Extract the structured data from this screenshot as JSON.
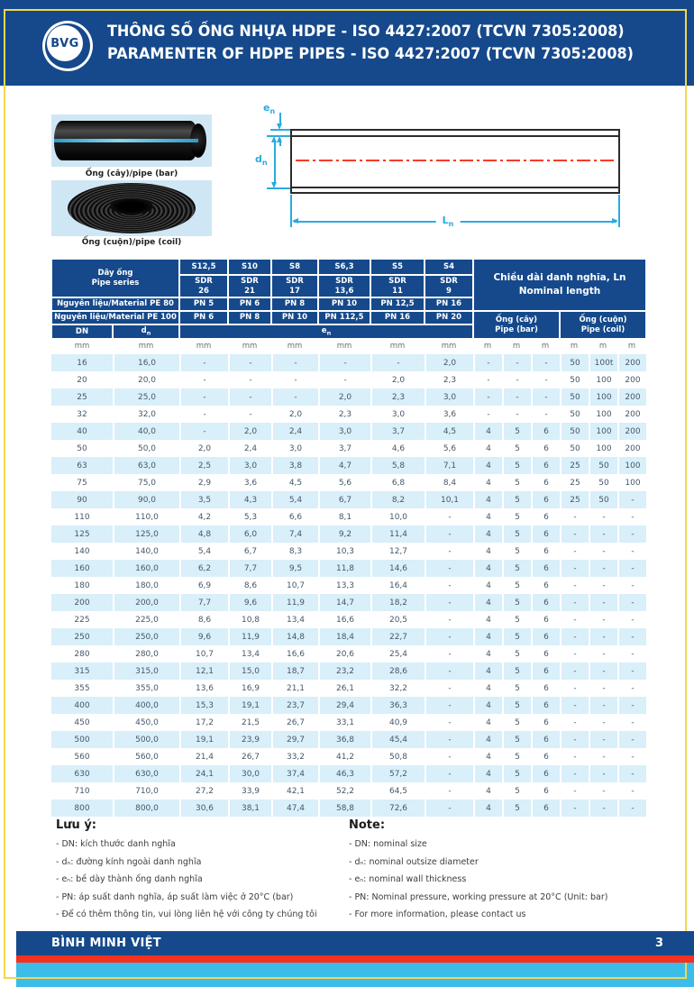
{
  "header": {
    "logo_text": "BVG",
    "title_line1": "THÔNG SỐ ỐNG NHỰA HDPE - ISO 4427:2007 (TCVN 7305:2008)",
    "title_line2": "PARAMENTER OF HDPE PIPES - ISO 4427:2007 (TCVN 7305:2008)"
  },
  "media": {
    "bar_label": "Ống (cây)/pipe (bar)",
    "coil_label": "Ống (cuộn)/pipe (coil)"
  },
  "diagram": {
    "en_main": "e",
    "dn_main": "d",
    "ln_main": "L",
    "sub_n": "n"
  },
  "table": {
    "series_title_vi": "Dãy ống",
    "series_title_en": "Pipe series",
    "s_labels": [
      "S12,5",
      "S10",
      "S8",
      "S6,3",
      "S5",
      "S4"
    ],
    "sdr_word": "SDR",
    "sdr_values": [
      "26",
      "21",
      "17",
      "13,6",
      "11",
      "9"
    ],
    "pe80_label": "Nguyên liệu/Material PE 80",
    "pe80_pn": [
      "PN 5",
      "PN 6",
      "PN 8",
      "PN 10",
      "PN 12,5",
      "PN 16"
    ],
    "pe100_label": "Nguyên liệu/Material PE 100",
    "pe100_pn": [
      "PN 6",
      "PN 8",
      "PN 10",
      "PN 112,5",
      "PN 16",
      "PN 20"
    ],
    "length_title_vi": "Chiều dài danh nghĩa, Ln",
    "length_title_en": "Nominal length",
    "bar_col_vi": "Ống (cây)",
    "bar_col_en": "Pipe (bar)",
    "coil_col_vi": "Ống (cuộn)",
    "coil_col_en": "Pipe (coil)",
    "dn_label": "DN",
    "dn_main": "d",
    "en_main": "e",
    "sub_n": "n",
    "units": [
      "mm",
      "mm",
      "mm",
      "mm",
      "mm",
      "mm",
      "mm",
      "mm",
      "m",
      "m",
      "m",
      "m",
      "m",
      "m"
    ],
    "rows": [
      [
        "16",
        "16,0",
        "-",
        "-",
        "-",
        "-",
        "-",
        "2,0",
        "-",
        "-",
        "-",
        "50",
        "100t",
        "200"
      ],
      [
        "20",
        "20,0",
        "-",
        "-",
        "-",
        "-",
        "2,0",
        "2,3",
        "-",
        "-",
        "-",
        "50",
        "100",
        "200"
      ],
      [
        "25",
        "25,0",
        "-",
        "-",
        "-",
        "2,0",
        "2,3",
        "3,0",
        "-",
        "-",
        "-",
        "50",
        "100",
        "200"
      ],
      [
        "32",
        "32,0",
        "-",
        "-",
        "2,0",
        "2,3",
        "3,0",
        "3,6",
        "-",
        "-",
        "-",
        "50",
        "100",
        "200"
      ],
      [
        "40",
        "40,0",
        "-",
        "2,0",
        "2,4",
        "3,0",
        "3,7",
        "4,5",
        "4",
        "5",
        "6",
        "50",
        "100",
        "200"
      ],
      [
        "50",
        "50,0",
        "2,0",
        "2,4",
        "3,0",
        "3,7",
        "4,6",
        "5,6",
        "4",
        "5",
        "6",
        "50",
        "100",
        "200"
      ],
      [
        "63",
        "63,0",
        "2,5",
        "3,0",
        "3,8",
        "4,7",
        "5,8",
        "7,1",
        "4",
        "5",
        "6",
        "25",
        "50",
        "100"
      ],
      [
        "75",
        "75,0",
        "2,9",
        "3,6",
        "4,5",
        "5,6",
        "6,8",
        "8,4",
        "4",
        "5",
        "6",
        "25",
        "50",
        "100"
      ],
      [
        "90",
        "90,0",
        "3,5",
        "4,3",
        "5,4",
        "6,7",
        "8,2",
        "10,1",
        "4",
        "5",
        "6",
        "25",
        "50",
        "-"
      ],
      [
        "110",
        "110,0",
        "4,2",
        "5,3",
        "6,6",
        "8,1",
        "10,0",
        "-",
        "4",
        "5",
        "6",
        "-",
        "-",
        "-"
      ],
      [
        "125",
        "125,0",
        "4,8",
        "6,0",
        "7,4",
        "9,2",
        "11,4",
        "-",
        "4",
        "5",
        "6",
        "-",
        "-",
        "-"
      ],
      [
        "140",
        "140,0",
        "5,4",
        "6,7",
        "8,3",
        "10,3",
        "12,7",
        "-",
        "4",
        "5",
        "6",
        "-",
        "-",
        "-"
      ],
      [
        "160",
        "160,0",
        "6,2",
        "7,7",
        "9,5",
        "11,8",
        "14,6",
        "-",
        "4",
        "5",
        "6",
        "-",
        "-",
        "-"
      ],
      [
        "180",
        "180,0",
        "6,9",
        "8,6",
        "10,7",
        "13,3",
        "16,4",
        "-",
        "4",
        "5",
        "6",
        "-",
        "-",
        "-"
      ],
      [
        "200",
        "200,0",
        "7,7",
        "9,6",
        "11,9",
        "14,7",
        "18,2",
        "-",
        "4",
        "5",
        "6",
        "-",
        "-",
        "-"
      ],
      [
        "225",
        "225,0",
        "8,6",
        "10,8",
        "13,4",
        "16,6",
        "20,5",
        "-",
        "4",
        "5",
        "6",
        "-",
        "-",
        "-"
      ],
      [
        "250",
        "250,0",
        "9,6",
        "11,9",
        "14,8",
        "18,4",
        "22,7",
        "-",
        "4",
        "5",
        "6",
        "-",
        "-",
        "-"
      ],
      [
        "280",
        "280,0",
        "10,7",
        "13,4",
        "16,6",
        "20,6",
        "25,4",
        "-",
        "4",
        "5",
        "6",
        "-",
        "-",
        "-"
      ],
      [
        "315",
        "315,0",
        "12,1",
        "15,0",
        "18,7",
        "23,2",
        "28,6",
        "-",
        "4",
        "5",
        "6",
        "-",
        "-",
        "-"
      ],
      [
        "355",
        "355,0",
        "13,6",
        "16,9",
        "21,1",
        "26,1",
        "32,2",
        "-",
        "4",
        "5",
        "6",
        "-",
        "-",
        "-"
      ],
      [
        "400",
        "400,0",
        "15,3",
        "19,1",
        "23,7",
        "29,4",
        "36,3",
        "-",
        "4",
        "5",
        "6",
        "-",
        "-",
        "-"
      ],
      [
        "450",
        "450,0",
        "17,2",
        "21,5",
        "26,7",
        "33,1",
        "40,9",
        "-",
        "4",
        "5",
        "6",
        "-",
        "-",
        "-"
      ],
      [
        "500",
        "500,0",
        "19,1",
        "23,9",
        "29,7",
        "36,8",
        "45,4",
        "-",
        "4",
        "5",
        "6",
        "-",
        "-",
        "-"
      ],
      [
        "560",
        "560,0",
        "21,4",
        "26,7",
        "33,2",
        "41,2",
        "50,8",
        "-",
        "4",
        "5",
        "6",
        "-",
        "-",
        "-"
      ],
      [
        "630",
        "630,0",
        "24,1",
        "30,0",
        "37,4",
        "46,3",
        "57,2",
        "-",
        "4",
        "5",
        "6",
        "-",
        "-",
        "-"
      ],
      [
        "710",
        "710,0",
        "27,2",
        "33,9",
        "42,1",
        "52,2",
        "64,5",
        "-",
        "4",
        "5",
        "6",
        "-",
        "-",
        "-"
      ],
      [
        "800",
        "800,0",
        "30,6",
        "38,1",
        "47,4",
        "58,8",
        "72,6",
        "-",
        "4",
        "5",
        "6",
        "-",
        "-",
        "-"
      ]
    ]
  },
  "notes": {
    "vi_title": "Lưu ý:",
    "vi_items": [
      "- DN: kích thước danh nghĩa",
      "- dₙ: đường kính ngoài danh nghĩa",
      "- eₙ: bề dày thành ống danh nghĩa",
      "- PN: áp suất danh nghĩa, áp suất làm việc ở 20°C (bar)",
      "- Để có thêm thông tin, vui lòng liên hệ với công ty chúng tôi"
    ],
    "en_title": "Note:",
    "en_items": [
      "- DN: nominal size",
      "- dₙ: nominal outsize diameter",
      "- eₙ: nominal wall thickness",
      "- PN: Nominal pressure, working pressure at 20°C (Unit: bar)",
      "- For more information, please contact us"
    ]
  },
  "footer": {
    "company": "BÌNH MINH VIỆT",
    "page_number": "3"
  },
  "colors": {
    "brand_blue": "#15498b",
    "stripe_blue": "#d9effa",
    "accent_cyan": "#3cbce8",
    "accent_red": "#f4301f",
    "frame_yellow": "#f0d74f"
  }
}
